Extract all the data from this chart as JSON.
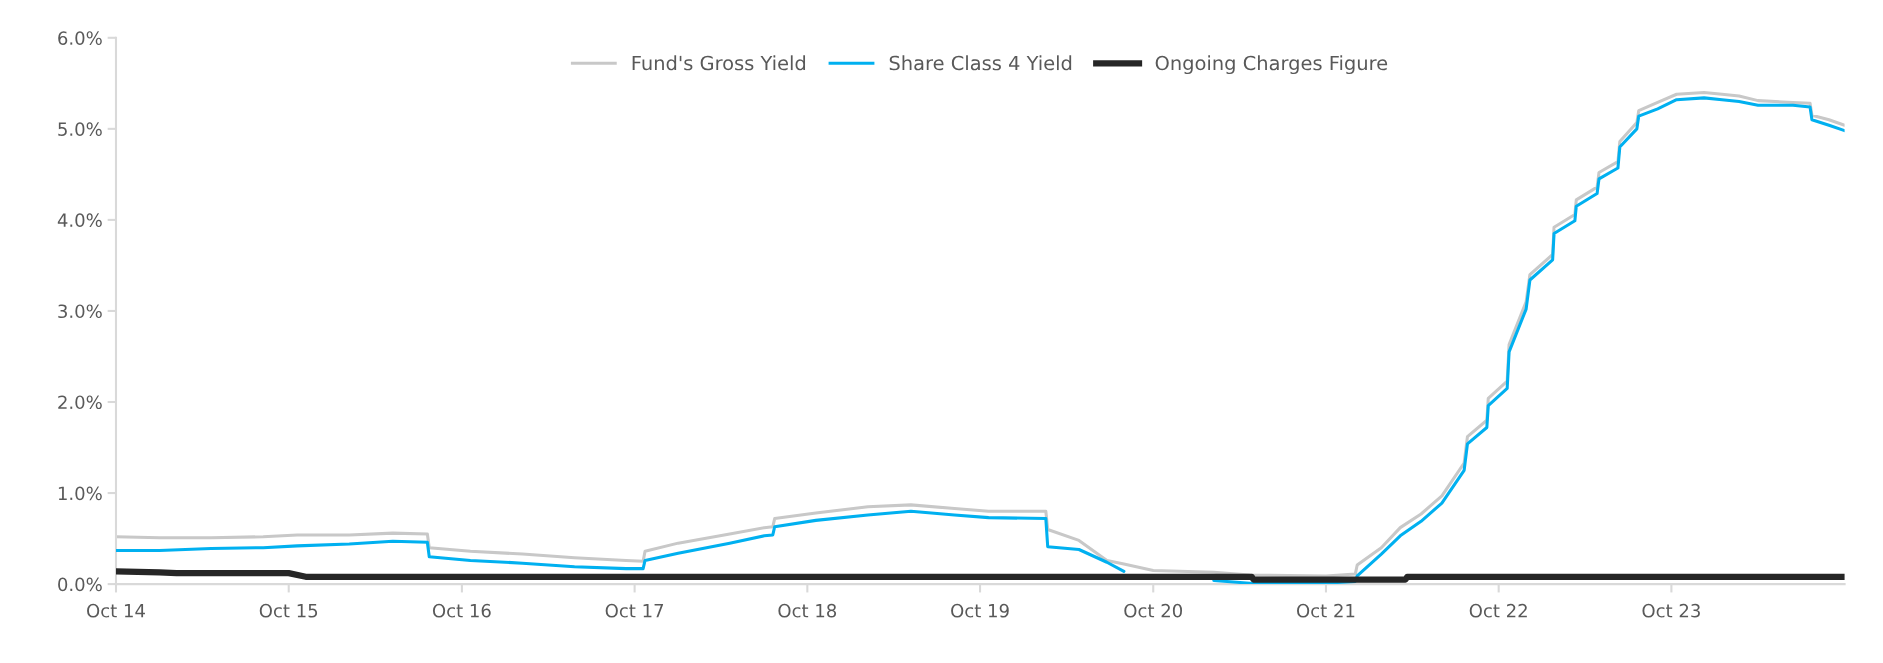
{
  "chart_data": {
    "type": "line",
    "xlim": [
      "2014-10-01",
      "2024-10-01"
    ],
    "xticks": [
      {
        "value": "2014-10-01",
        "label": "Oct 14"
      },
      {
        "value": "2015-10-01",
        "label": "Oct 15"
      },
      {
        "value": "2016-10-01",
        "label": "Oct 16"
      },
      {
        "value": "2017-10-01",
        "label": "Oct 17"
      },
      {
        "value": "2018-10-01",
        "label": "Oct 18"
      },
      {
        "value": "2019-10-01",
        "label": "Oct 19"
      },
      {
        "value": "2020-10-01",
        "label": "Oct 20"
      },
      {
        "value": "2021-10-01",
        "label": "Oct 21"
      },
      {
        "value": "2022-10-01",
        "label": "Oct 22"
      },
      {
        "value": "2023-10-01",
        "label": "Oct 23"
      }
    ],
    "ylim": [
      0,
      6
    ],
    "yticks": [
      {
        "value": 0,
        "label": "0.0%"
      },
      {
        "value": 1,
        "label": "1.0%"
      },
      {
        "value": 2,
        "label": "2.0%"
      },
      {
        "value": 3,
        "label": "3.0%"
      },
      {
        "value": 4,
        "label": "4.0%"
      },
      {
        "value": 5,
        "label": "5.0%"
      },
      {
        "value": 6,
        "label": "6.0%"
      }
    ],
    "grid": false,
    "legend": "top",
    "marker": "none",
    "line_style": "solid",
    "series": [
      {
        "name": "Fund's Gross Yield",
        "color": "#c8c8c8",
        "x": [
          "2014-10-01",
          "2015-01-01",
          "2015-04-20",
          "2015-08-08",
          "2015-10-19",
          "2016-02-06",
          "2016-05-08",
          "2016-07-20",
          "2016-07-24",
          "2016-10-19",
          "2017-02-06",
          "2017-05-27",
          "2017-09-13",
          "2017-10-19",
          "2017-10-23",
          "2018-01-01",
          "2018-04-20",
          "2018-07-02",
          "2018-07-20",
          "2018-07-24",
          "2018-10-19",
          "2019-02-06",
          "2019-05-08",
          "2019-08-08",
          "2019-10-19",
          "2020-02-17",
          "2020-02-21",
          "2020-04-27",
          "2020-06-25",
          "2020-07-31",
          "2020-10-01",
          "2021-02-06",
          "2021-04-23",
          "2021-10-01",
          "2021-12-02",
          "2021-12-06",
          "2022-01-26",
          "2022-03-07",
          "2022-04-20",
          "2022-06-03",
          "2022-07-20",
          "2022-07-27",
          "2022-09-06",
          "2022-09-09",
          "2022-10-19",
          "2022-10-23",
          "2022-11-28",
          "2022-12-06",
          "2023-01-23",
          "2023-01-26",
          "2023-03-11",
          "2023-03-14",
          "2023-04-27",
          "2023-05-01",
          "2023-06-10",
          "2023-06-14",
          "2023-07-20",
          "2023-07-24",
          "2023-09-02",
          "2023-10-12",
          "2023-12-09",
          "2024-01-16",
          "2024-02-21",
          "2024-04-01",
          "2024-06-14",
          "2024-07-20",
          "2024-07-24",
          "2024-08-29",
          "2024-10-01"
        ],
        "values": [
          0.52,
          0.51,
          0.51,
          0.52,
          0.54,
          0.54,
          0.56,
          0.55,
          0.4,
          0.36,
          0.33,
          0.29,
          0.26,
          0.25,
          0.36,
          0.45,
          0.55,
          0.62,
          0.63,
          0.72,
          0.78,
          0.85,
          0.87,
          0.83,
          0.8,
          0.8,
          0.6,
          0.48,
          0.26,
          0.22,
          0.15,
          0.13,
          0.1,
          0.09,
          0.11,
          0.21,
          0.4,
          0.62,
          0.77,
          0.97,
          1.33,
          1.62,
          1.8,
          2.04,
          2.23,
          2.63,
          3.1,
          3.4,
          3.62,
          3.92,
          4.06,
          4.22,
          4.36,
          4.52,
          4.64,
          4.86,
          5.07,
          5.2,
          5.29,
          5.38,
          5.4,
          5.38,
          5.36,
          5.31,
          5.29,
          5.28,
          5.15,
          5.1,
          5.04
        ]
      },
      {
        "name": "Share Class 4 Yield",
        "color": "#00b0f0",
        "x": [
          "2014-10-01",
          "2015-01-01",
          "2015-04-20",
          "2015-08-08",
          "2015-10-19",
          "2016-02-06",
          "2016-05-08",
          "2016-07-20",
          "2016-07-24",
          "2016-10-19",
          "2017-02-06",
          "2017-05-27",
          "2017-09-13",
          "2017-10-19",
          "2017-10-23",
          "2018-01-01",
          "2018-04-20",
          "2018-07-02",
          "2018-07-20",
          "2018-07-24",
          "2018-10-19",
          "2019-02-06",
          "2019-05-08",
          "2019-08-08",
          "2019-10-19",
          "2020-02-17",
          "2020-02-21",
          "2020-04-27",
          "2020-06-25",
          "2020-07-31",
          "2020-10-01",
          "2021-02-06",
          "2021-04-23",
          "2021-10-01",
          "2021-12-02",
          "2021-12-06",
          "2022-01-26",
          "2022-03-07",
          "2022-04-20",
          "2022-06-03",
          "2022-07-20",
          "2022-07-27",
          "2022-09-06",
          "2022-09-09",
          "2022-10-19",
          "2022-10-23",
          "2022-11-28",
          "2022-12-06",
          "2023-01-23",
          "2023-01-26",
          "2023-03-11",
          "2023-03-14",
          "2023-04-27",
          "2023-05-01",
          "2023-06-10",
          "2023-06-14",
          "2023-07-20",
          "2023-07-24",
          "2023-09-02",
          "2023-10-12",
          "2023-12-09",
          "2024-01-16",
          "2024-02-21",
          "2024-04-01",
          "2024-06-14",
          "2024-07-20",
          "2024-07-24",
          "2024-08-29",
          "2024-10-01"
        ],
        "values": [
          0.37,
          0.37,
          0.39,
          0.4,
          0.42,
          0.44,
          0.47,
          0.46,
          0.3,
          0.26,
          0.23,
          0.19,
          0.17,
          0.17,
          0.26,
          0.34,
          0.45,
          0.53,
          0.54,
          0.63,
          0.7,
          0.76,
          0.8,
          0.76,
          0.73,
          0.72,
          0.41,
          0.38,
          0.24,
          0.14,
          null,
          0.04,
          0.01,
          0.01,
          0.03,
          0.09,
          0.33,
          0.53,
          0.69,
          0.89,
          1.25,
          1.54,
          1.72,
          1.96,
          2.15,
          2.55,
          3.02,
          3.34,
          3.56,
          3.85,
          3.99,
          4.15,
          4.29,
          4.45,
          4.57,
          4.8,
          5.0,
          5.14,
          5.22,
          5.32,
          5.34,
          5.32,
          5.3,
          5.26,
          5.26,
          5.24,
          5.1,
          5.04,
          4.98
        ]
      },
      {
        "name": "Ongoing Charges Figure",
        "color": "#262626",
        "x": [
          "2014-10-01",
          "2015-01-01",
          "2015-02-06",
          "2015-10-01",
          "2015-11-06",
          "2021-04-27",
          "2021-05-01",
          "2022-03-18",
          "2022-03-22",
          "2024-10-01"
        ],
        "values": [
          0.14,
          0.13,
          0.12,
          0.12,
          0.08,
          0.08,
          0.05,
          0.05,
          0.08,
          0.08
        ]
      }
    ]
  }
}
